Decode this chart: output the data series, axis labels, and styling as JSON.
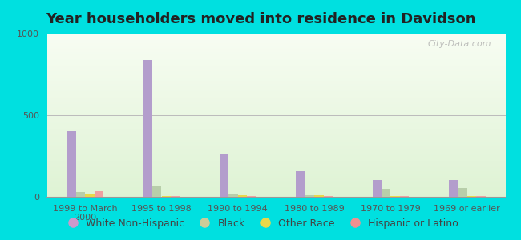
{
  "title": "Year householders moved into residence in Davidson",
  "categories": [
    "1999 to March\n2000",
    "1995 to 1998",
    "1990 to 1994",
    "1980 to 1989",
    "1970 to 1979",
    "1969 or earlier"
  ],
  "series": {
    "White Non-Hispanic": [
      400,
      840,
      265,
      155,
      105,
      105
    ],
    "Black": [
      28,
      65,
      18,
      12,
      50,
      55
    ],
    "Other Race": [
      18,
      4,
      10,
      10,
      4,
      4
    ],
    "Hispanic or Latino": [
      35,
      4,
      4,
      4,
      4,
      4
    ]
  },
  "colors": {
    "White Non-Hispanic": "#b39dcc",
    "Black": "#b8ceaa",
    "Other Race": "#e8d84a",
    "Hispanic or Latino": "#f0a0a0"
  },
  "legend_colors": {
    "White Non-Hispanic": "#cc99cc",
    "Black": "#cccc99",
    "Other Race": "#e8d84a",
    "Hispanic or Latino": "#f09090"
  },
  "ylim": [
    0,
    1000
  ],
  "yticks": [
    0,
    500,
    1000
  ],
  "bar_width": 0.12,
  "background_outer": "#00e0e0",
  "grid_color": "#bbbbbb",
  "title_fontsize": 13,
  "tick_fontsize": 8,
  "legend_fontsize": 9,
  "watermark": "City-Data.com"
}
